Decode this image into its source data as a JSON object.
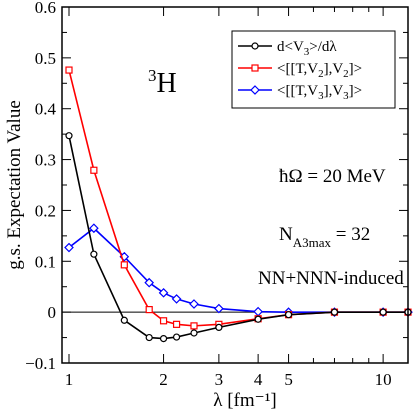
{
  "chart_data": {
    "type": "line",
    "title": "",
    "xlabel": "λ [fm⁻¹]",
    "ylabel": "g.s. Expectation Value",
    "xscale": "log",
    "xlim": [
      0.95,
      12
    ],
    "ylim": [
      -0.1,
      0.6
    ],
    "xticks": [
      1,
      2,
      3,
      4,
      5,
      10
    ],
    "xtick_labels": [
      "1",
      "2",
      "3",
      "4",
      "5",
      "10"
    ],
    "yticks": [
      -0.1,
      0,
      0.1,
      0.2,
      0.3,
      0.4,
      0.5,
      0.6
    ],
    "ytick_labels": [
      "−0.1",
      "0",
      "0.1",
      "0.2",
      "0.3",
      "0.4",
      "0.5",
      "0.6"
    ],
    "grid": false,
    "legend_position": "top-right",
    "zero_line": true,
    "series": [
      {
        "name": "d<V3>/dλ",
        "color": "#000000",
        "marker": "circle",
        "x": [
          1.0,
          1.2,
          1.5,
          1.8,
          2.0,
          2.2,
          2.5,
          3.0,
          4.0,
          5.0,
          7.0,
          10.0,
          12.0
        ],
        "y": [
          0.347,
          0.114,
          -0.016,
          -0.05,
          -0.052,
          -0.049,
          -0.041,
          -0.03,
          -0.014,
          -0.005,
          0.0,
          0.0,
          0.0
        ]
      },
      {
        "name": "<[[T,V2],V2]>",
        "color": "#ff0000",
        "marker": "square",
        "x": [
          1.0,
          1.2,
          1.5,
          1.8,
          2.0,
          2.2,
          2.5,
          3.0,
          4.0,
          5.0,
          7.0,
          10.0,
          12.0
        ],
        "y": [
          0.476,
          0.279,
          0.093,
          0.005,
          -0.017,
          -0.024,
          -0.027,
          -0.024,
          -0.013,
          -0.005,
          0.0,
          0.0,
          0.0
        ]
      },
      {
        "name": "<[[T,V3],V3]>",
        "color": "#0000ff",
        "marker": "diamond",
        "x": [
          1.0,
          1.2,
          1.5,
          1.8,
          2.0,
          2.2,
          2.5,
          3.0,
          4.0,
          5.0,
          7.0,
          10.0,
          12.0
        ],
        "y": [
          0.127,
          0.165,
          0.109,
          0.058,
          0.038,
          0.026,
          0.016,
          0.007,
          0.001,
          0.0,
          0.0,
          0.0,
          0.0
        ]
      }
    ],
    "annotations": {
      "nucleus": "³H",
      "freq": "ħΩ = 20 MeV",
      "nmax": "N_A3max = 32",
      "interaction": "NN+NNN-induced"
    }
  }
}
